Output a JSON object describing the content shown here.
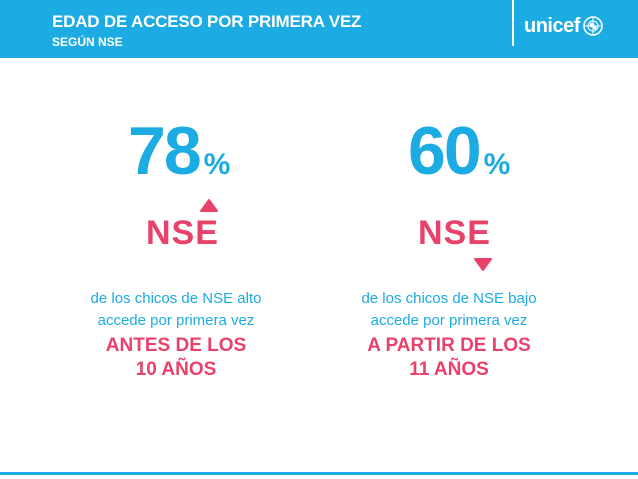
{
  "header": {
    "title": "EDAD DE ACCESO POR PRIMERA VEZ",
    "subtitle": "SEGÚN NSE",
    "logo_text": "unicef",
    "logo_icon": "unicef-emblem-icon"
  },
  "stats": [
    {
      "number": "78",
      "sign": "%",
      "label": "NSE",
      "arrow_icon": "arrow-up-icon",
      "desc_line1": "de los chicos de NSE alto",
      "desc_line2": "accede por primera vez",
      "highlight_line1": "ANTES DE LOS",
      "highlight_line2": "10 AÑOS"
    },
    {
      "number": "60",
      "sign": "%",
      "label": "NSE",
      "arrow_icon": "arrow-down-icon",
      "desc_line1": "de los chicos de NSE bajo",
      "desc_line2": "accede por primera vez",
      "highlight_line1": "A PARTIR DE LOS",
      "highlight_line2": "11 AÑOS"
    }
  ],
  "colors": {
    "primary_blue": "#1cabe2",
    "accent_pink": "#e8426a"
  }
}
